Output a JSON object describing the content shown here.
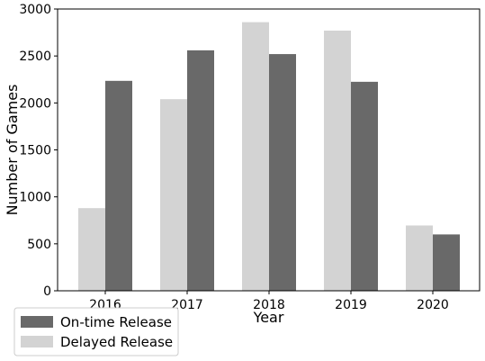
{
  "chart_data": {
    "type": "bar",
    "categories": [
      "2016",
      "2017",
      "2018",
      "2019",
      "2020"
    ],
    "series": [
      {
        "name": "Delayed Release",
        "color": "#d3d3d3",
        "values": [
          880,
          2040,
          2860,
          2770,
          695
        ]
      },
      {
        "name": "On-time Release",
        "color": "#696969",
        "values": [
          2235,
          2560,
          2520,
          2225,
          600
        ]
      }
    ],
    "xlabel": "Year",
    "ylabel": "Number of Games",
    "ylim": [
      0,
      3000
    ],
    "yticks": [
      0,
      500,
      1000,
      1500,
      2000,
      2500,
      3000
    ],
    "grid": false,
    "legend": {
      "placement": "bottom-left",
      "entries": [
        {
          "label": "On-time Release",
          "color": "#696969"
        },
        {
          "label": "Delayed Release",
          "color": "#d3d3d3"
        }
      ]
    }
  }
}
